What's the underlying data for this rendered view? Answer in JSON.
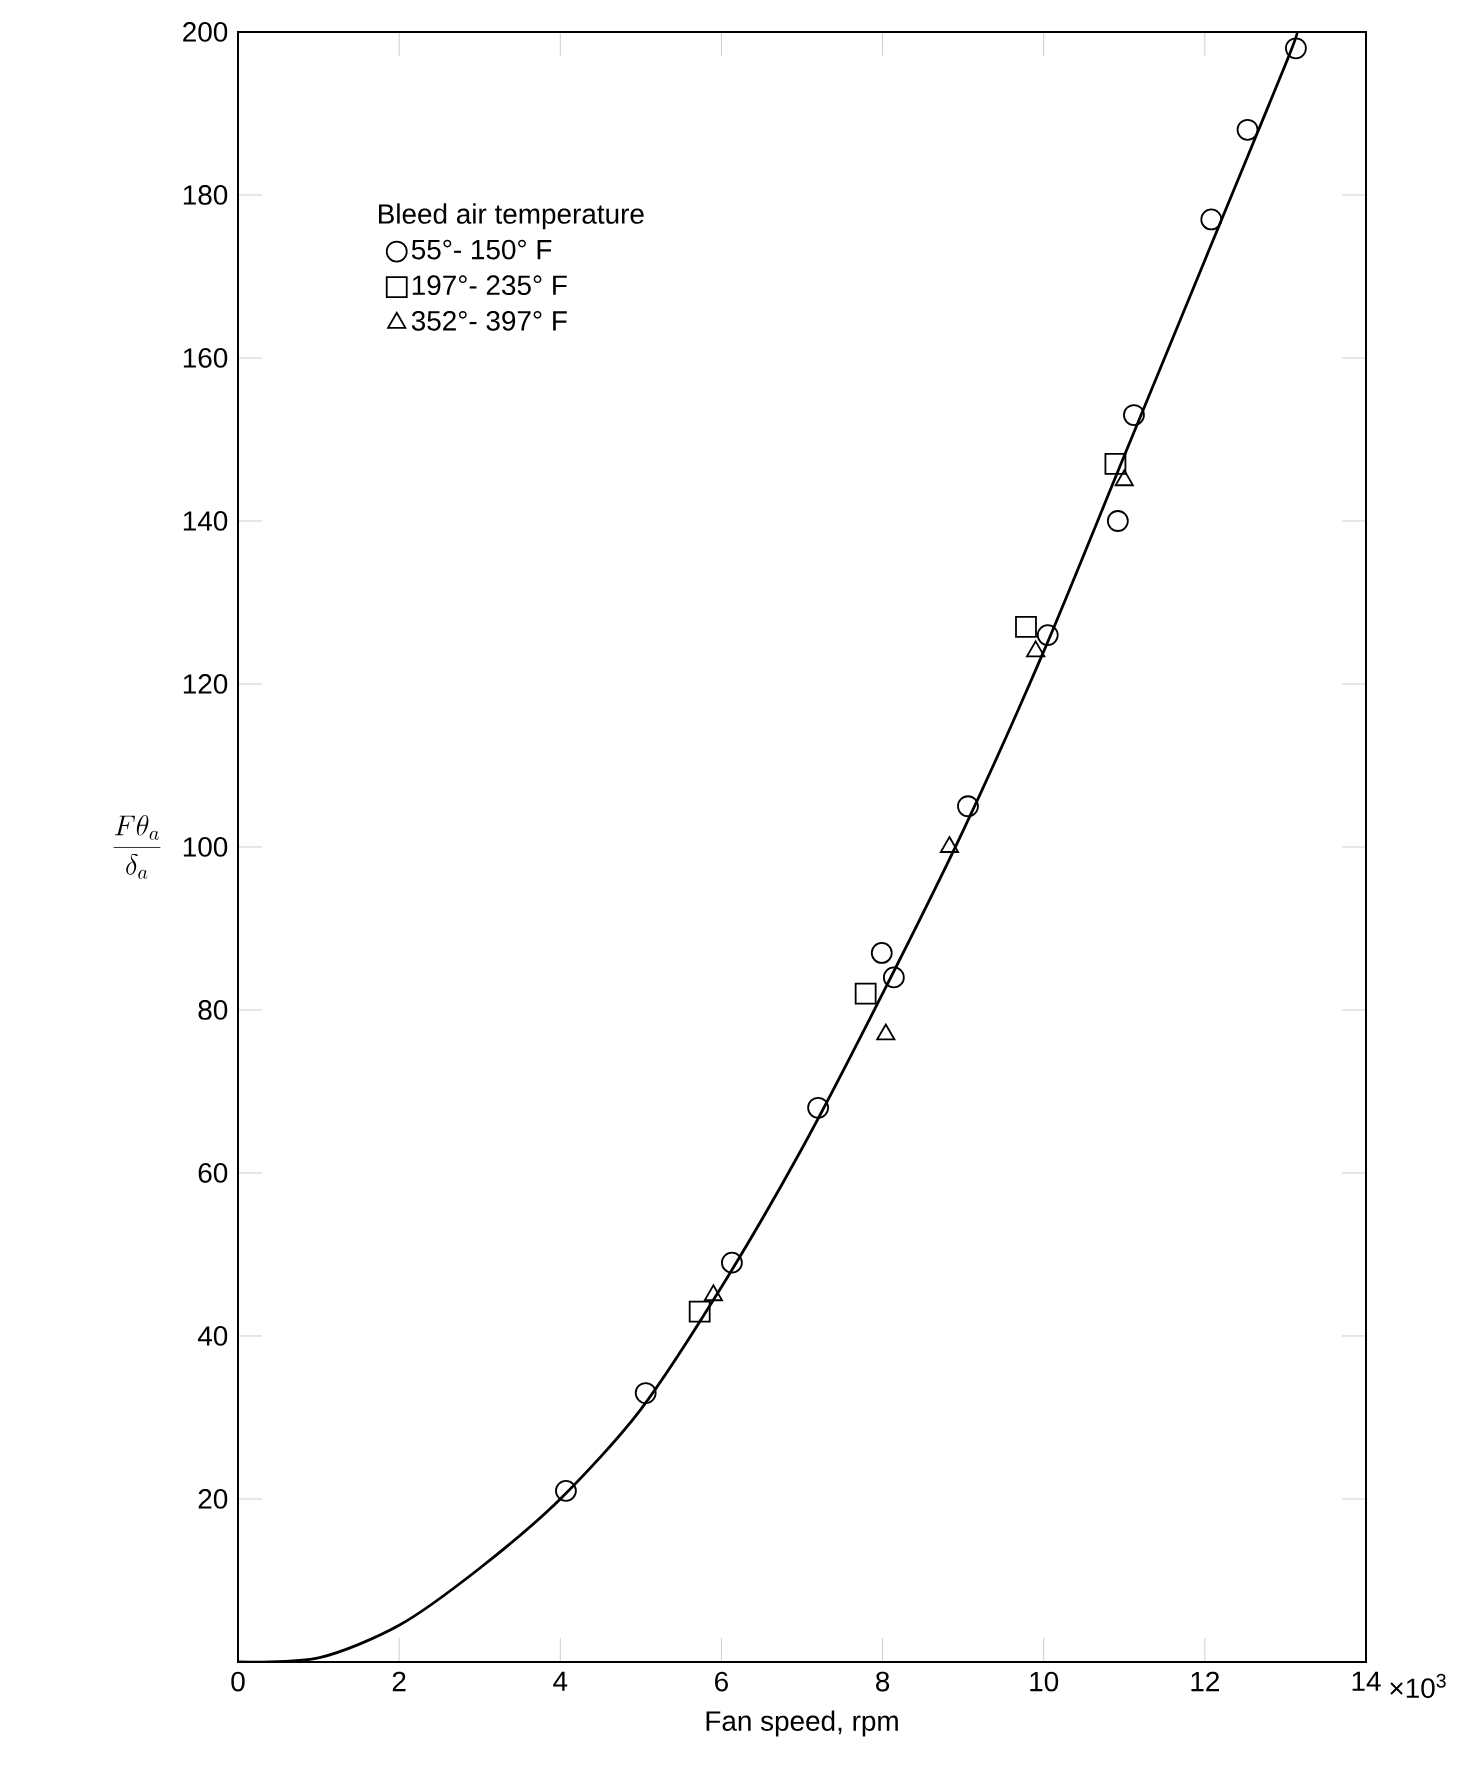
{
  "chart_data": {
    "type": "scatter",
    "xlabel": "Fan speed, rpm",
    "ylabel": "\\frac{F\\theta_a}{\\delta_a}",
    "legend_title": "Bleed air temperature",
    "legend": "top left",
    "xlim": [
      0,
      14
    ],
    "ylim": [
      0,
      200
    ],
    "xticks": [
      0,
      2,
      4,
      6,
      8,
      10,
      12,
      14
    ],
    "annotations": [
      "×10$^{3}$"
    ],
    "yticks": [
      {
        "value": 0,
        "label": null
      },
      20,
      40,
      60,
      80,
      100,
      120,
      140,
      160,
      180,
      200
    ],
    "series": [
      {
        "name": "55°- 150° F",
        "type": "scatter",
        "marker": "circle",
        "color": "#000000",
        "x": [
          4.07,
          5.06,
          6.13,
          7.2,
          7.99,
          8.14,
          9.06,
          10.05,
          10.92,
          11.12,
          12.08,
          12.53,
          13.13
        ],
        "values": [
          21,
          33,
          49,
          68,
          87,
          84,
          105,
          126,
          140,
          153,
          177,
          188,
          198
        ]
      },
      {
        "name": "197°- 235° F",
        "type": "scatter",
        "marker": "square",
        "color": "#000000",
        "x": [
          5.73,
          7.79,
          9.78,
          10.89
        ],
        "values": [
          43,
          82,
          127,
          147
        ]
      },
      {
        "name": "352°- 397° F",
        "type": "scatter",
        "marker": "triangle",
        "color": "#000000",
        "x": [
          5.9,
          8.04,
          8.83,
          9.9,
          11.0
        ],
        "values": [
          45,
          77,
          100,
          124,
          145
        ]
      },
      {
        "type": "line",
        "marker": "none",
        "line_style": "solid",
        "color": "#000000",
        "x": [
          0,
          1,
          2,
          3,
          4,
          5,
          6,
          7,
          8,
          9,
          10,
          11,
          12,
          13,
          13.15
        ],
        "values": [
          0,
          0.5,
          4.5,
          11.5,
          20,
          31,
          46,
          63,
          82,
          102,
          124,
          148,
          172,
          196,
          200
        ]
      }
    ]
  }
}
